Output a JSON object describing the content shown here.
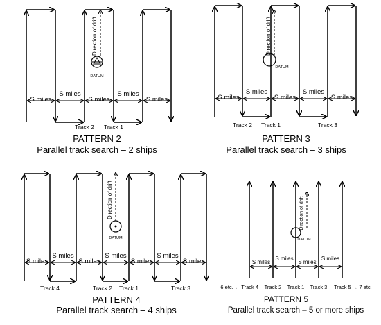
{
  "common": {
    "spacing_label": "S miles",
    "drift_label": "Direction of drift",
    "datum_label": "DATUM"
  },
  "patterns": [
    {
      "id": "p2",
      "title": "PATTERN 2",
      "subtitle": "Parallel track search – 2 ships",
      "tracks": [
        {
          "text": "Track 2"
        },
        {
          "text": "Track 1"
        }
      ]
    },
    {
      "id": "p3",
      "title": "PATTERN 3",
      "subtitle": "Parallel track search – 3 ships",
      "tracks": [
        {
          "text": "Track 2"
        },
        {
          "text": "Track 1"
        },
        {
          "text": "Track 3"
        }
      ]
    },
    {
      "id": "p4",
      "title": "PATTERN 4",
      "subtitle": "Parallel track search – 4 ships",
      "tracks": [
        {
          "text": "Track 4"
        },
        {
          "text": "Track 2"
        },
        {
          "text": "Track 1"
        },
        {
          "text": "Track 3"
        }
      ]
    },
    {
      "id": "p5",
      "title": "PATTERN 5",
      "subtitle": "Parallel track search – 5 or more ships",
      "tracks": [
        {
          "text": "6 etc. ← Track 4"
        },
        {
          "text": "Track 2"
        },
        {
          "text": "Track 1"
        },
        {
          "text": "Track 3"
        },
        {
          "text": "Track 5 → 7 etc."
        }
      ]
    }
  ]
}
